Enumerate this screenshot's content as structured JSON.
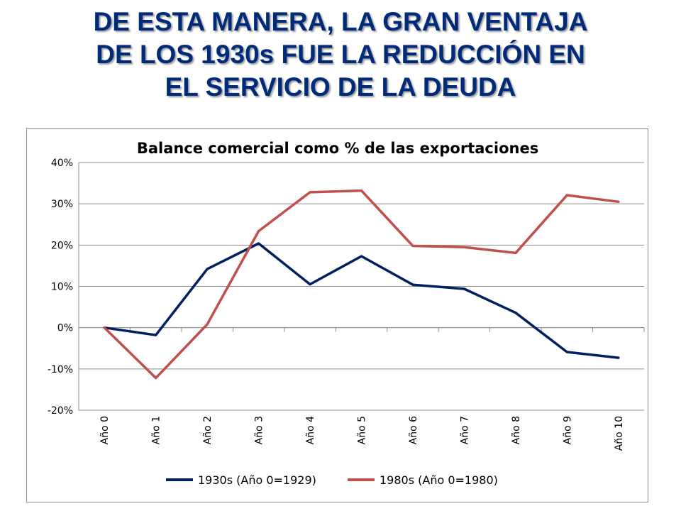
{
  "slide": {
    "title_lines": [
      "DE ESTA MANERA, LA GRAN VENTAJA",
      "DE LOS 1930s FUE LA REDUCCIÓN EN",
      "EL SERVICIO DE LA DEUDA"
    ]
  },
  "chart_data": {
    "type": "line",
    "title": "Balance comercial como % de las exportaciones",
    "categories": [
      "Año 0",
      "Año 1",
      "Año 2",
      "Año 3",
      "Año 4",
      "Año 5",
      "Año 6",
      "Año 7",
      "Año 8",
      "Año 9",
      "Año 10"
    ],
    "y_ticks": [
      "40%",
      "30%",
      "20%",
      "10%",
      "0%",
      "-10%",
      "-20%"
    ],
    "ylim": [
      -20,
      40
    ],
    "y_unit": "%",
    "grid": true,
    "legend_position": "bottom",
    "series": [
      {
        "name": "1930s (Año 0=1929)",
        "color": "#002060",
        "values": [
          0,
          -1.8,
          14.2,
          20.4,
          10.5,
          17.3,
          10.4,
          9.4,
          3.6,
          -5.9,
          -7.3
        ]
      },
      {
        "name": "1980s (Año 0=1980)",
        "color": "#c0504d",
        "values": [
          0,
          -12.2,
          0.8,
          23.4,
          32.8,
          33.2,
          19.8,
          19.5,
          18.1,
          32.1,
          30.5
        ]
      }
    ]
  }
}
